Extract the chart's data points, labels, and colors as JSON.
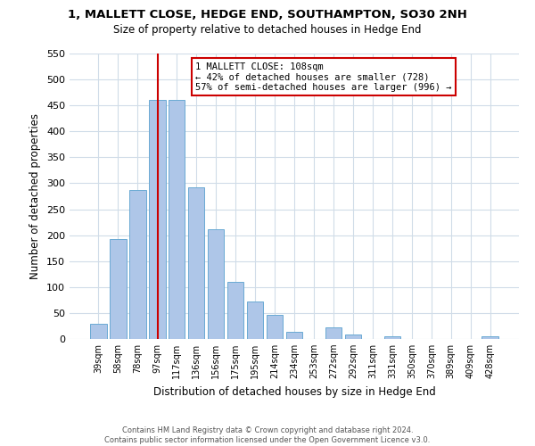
{
  "title1": "1, MALLETT CLOSE, HEDGE END, SOUTHAMPTON, SO30 2NH",
  "title2": "Size of property relative to detached houses in Hedge End",
  "xlabel": "Distribution of detached houses by size in Hedge End",
  "ylabel": "Number of detached properties",
  "bar_labels": [
    "39sqm",
    "58sqm",
    "78sqm",
    "97sqm",
    "117sqm",
    "136sqm",
    "156sqm",
    "175sqm",
    "195sqm",
    "214sqm",
    "234sqm",
    "253sqm",
    "272sqm",
    "292sqm",
    "311sqm",
    "331sqm",
    "350sqm",
    "370sqm",
    "389sqm",
    "409sqm",
    "428sqm"
  ],
  "bar_values": [
    30,
    192,
    287,
    460,
    460,
    292,
    212,
    110,
    73,
    46,
    14,
    0,
    23,
    8,
    0,
    5,
    0,
    0,
    0,
    0,
    5
  ],
  "bar_color": "#aec6e8",
  "bar_edge_color": "#6aaad4",
  "vline_color": "#cc0000",
  "annotation_title": "1 MALLETT CLOSE: 108sqm",
  "annotation_line2": "← 42% of detached houses are smaller (728)",
  "annotation_line3": "57% of semi-detached houses are larger (996) →",
  "annotation_box_edge": "#cc0000",
  "ylim": [
    0,
    550
  ],
  "yticks": [
    0,
    50,
    100,
    150,
    200,
    250,
    300,
    350,
    400,
    450,
    500,
    550
  ],
  "footnote1": "Contains HM Land Registry data © Crown copyright and database right 2024.",
  "footnote2": "Contains public sector information licensed under the Open Government Licence v3.0.",
  "bg_color": "#ffffff",
  "grid_color": "#d0dce8"
}
